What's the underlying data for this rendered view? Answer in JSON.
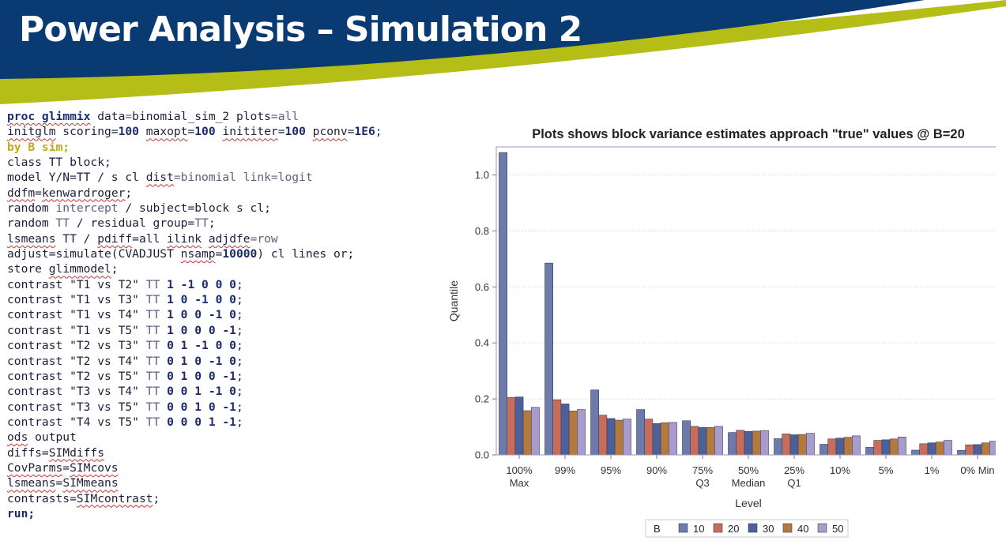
{
  "slide": {
    "title": "Power Analysis – Simulation 2"
  },
  "code_lines": [
    [
      {
        "t": "proc glimmix",
        "c": "k u"
      },
      {
        "t": " data",
        "c": ""
      },
      {
        "t": "=",
        "c": "o"
      },
      {
        "t": "binomial_sim_2 plots",
        "c": ""
      },
      {
        "t": "=",
        "c": "o"
      },
      {
        "t": "all",
        "c": "o"
      }
    ],
    [
      {
        "t": "initglm",
        "c": "u"
      },
      {
        "t": " scoring=",
        "c": ""
      },
      {
        "t": "100",
        "c": "n"
      },
      {
        "t": " ",
        "c": ""
      },
      {
        "t": "maxopt",
        "c": "u"
      },
      {
        "t": "=",
        "c": ""
      },
      {
        "t": "100",
        "c": "n"
      },
      {
        "t": " ",
        "c": ""
      },
      {
        "t": "inititer",
        "c": "u"
      },
      {
        "t": "=",
        "c": ""
      },
      {
        "t": "100",
        "c": "n"
      },
      {
        "t": " ",
        "c": ""
      },
      {
        "t": "pconv",
        "c": "u"
      },
      {
        "t": "=",
        "c": ""
      },
      {
        "t": "1E6",
        "c": "n"
      },
      {
        "t": ";",
        "c": ""
      }
    ],
    [
      {
        "t": "by B sim;",
        "c": "kw"
      }
    ],
    [
      {
        "t": "class TT block;",
        "c": ""
      }
    ],
    [
      {
        "t": "model Y/N=TT / s cl ",
        "c": ""
      },
      {
        "t": "dist",
        "c": "u"
      },
      {
        "t": "=binomial link=logit",
        "c": "o"
      }
    ],
    [
      {
        "t": "ddfm",
        "c": "u"
      },
      {
        "t": "=",
        "c": ""
      },
      {
        "t": "kenwardroger",
        "c": "u"
      },
      {
        "t": ";",
        "c": ""
      }
    ],
    [
      {
        "t": "random ",
        "c": ""
      },
      {
        "t": "intercept",
        "c": "o"
      },
      {
        "t": " / subject=block s cl;",
        "c": ""
      }
    ],
    [
      {
        "t": "random ",
        "c": ""
      },
      {
        "t": "TT",
        "c": "o"
      },
      {
        "t": " / residual group=",
        "c": ""
      },
      {
        "t": "TT",
        "c": "o"
      },
      {
        "t": ";",
        "c": ""
      }
    ],
    [
      {
        "t": "lsmeans",
        "c": "u"
      },
      {
        "t": " TT / ",
        "c": ""
      },
      {
        "t": "pdiff",
        "c": "u"
      },
      {
        "t": "=all ",
        "c": ""
      },
      {
        "t": "ilink",
        "c": "u"
      },
      {
        "t": " ",
        "c": ""
      },
      {
        "t": "adjdfe",
        "c": "u"
      },
      {
        "t": "=row",
        "c": "o"
      }
    ],
    [
      {
        "t": "adjust=simulate(CVADJUST ",
        "c": ""
      },
      {
        "t": "nsamp",
        "c": "u"
      },
      {
        "t": "=",
        "c": ""
      },
      {
        "t": "10000",
        "c": "n"
      },
      {
        "t": ") cl lines or;",
        "c": ""
      }
    ],
    [
      {
        "t": "store ",
        "c": ""
      },
      {
        "t": "glimmodel",
        "c": "u"
      },
      {
        "t": ";",
        "c": ""
      }
    ],
    [
      {
        "t": "contrast \"T1 vs T2\" ",
        "c": ""
      },
      {
        "t": "TT",
        "c": "o"
      },
      {
        "t": " ",
        "c": ""
      },
      {
        "t": "1 -1 0 0 0",
        "c": "n"
      },
      {
        "t": ";",
        "c": ""
      }
    ],
    [
      {
        "t": "contrast \"T1 vs T3\" ",
        "c": ""
      },
      {
        "t": "TT",
        "c": "o"
      },
      {
        "t": " ",
        "c": ""
      },
      {
        "t": "1 0 -1 0 0",
        "c": "n"
      },
      {
        "t": ";",
        "c": ""
      }
    ],
    [
      {
        "t": "contrast \"T1 vs T4\" ",
        "c": ""
      },
      {
        "t": "TT",
        "c": "o"
      },
      {
        "t": " ",
        "c": ""
      },
      {
        "t": "1 0 0 -1 0",
        "c": "n"
      },
      {
        "t": ";",
        "c": ""
      }
    ],
    [
      {
        "t": "contrast \"T1 vs T5\" ",
        "c": ""
      },
      {
        "t": "TT",
        "c": "o"
      },
      {
        "t": " ",
        "c": ""
      },
      {
        "t": "1 0 0 0 -1",
        "c": "n"
      },
      {
        "t": ";",
        "c": ""
      }
    ],
    [
      {
        "t": "contrast \"T2 vs T3\" ",
        "c": ""
      },
      {
        "t": "TT",
        "c": "o"
      },
      {
        "t": " ",
        "c": ""
      },
      {
        "t": "0 1 -1 0 0",
        "c": "n"
      },
      {
        "t": ";",
        "c": ""
      }
    ],
    [
      {
        "t": "contrast \"T2 vs T4\" ",
        "c": ""
      },
      {
        "t": "TT",
        "c": "o"
      },
      {
        "t": " ",
        "c": ""
      },
      {
        "t": "0 1 0 -1 0",
        "c": "n"
      },
      {
        "t": ";",
        "c": ""
      }
    ],
    [
      {
        "t": "contrast \"T2 vs T5\" ",
        "c": ""
      },
      {
        "t": "TT",
        "c": "o"
      },
      {
        "t": " ",
        "c": ""
      },
      {
        "t": "0 1 0 0 -1",
        "c": "n"
      },
      {
        "t": ";",
        "c": ""
      }
    ],
    [
      {
        "t": "contrast \"T3 vs T4\" ",
        "c": ""
      },
      {
        "t": "TT",
        "c": "o"
      },
      {
        "t": " ",
        "c": ""
      },
      {
        "t": "0 0 1 -1 0",
        "c": "n"
      },
      {
        "t": ";",
        "c": ""
      }
    ],
    [
      {
        "t": "contrast \"T3 vs T5\" ",
        "c": ""
      },
      {
        "t": "TT",
        "c": "o"
      },
      {
        "t": " ",
        "c": ""
      },
      {
        "t": "0 0 1 0 -1",
        "c": "n"
      },
      {
        "t": ";",
        "c": ""
      }
    ],
    [
      {
        "t": "contrast \"T4 vs T5\" ",
        "c": ""
      },
      {
        "t": "TT",
        "c": "o"
      },
      {
        "t": " ",
        "c": ""
      },
      {
        "t": "0 0 0 1 -1",
        "c": "n"
      },
      {
        "t": ";",
        "c": ""
      }
    ],
    [
      {
        "t": "ods",
        "c": "u"
      },
      {
        "t": " output",
        "c": ""
      }
    ],
    [
      {
        "t": "diffs=",
        "c": ""
      },
      {
        "t": "SIMdiffs",
        "c": "u"
      }
    ],
    [
      {
        "t": "CovParms",
        "c": "u"
      },
      {
        "t": "=",
        "c": ""
      },
      {
        "t": "SIMcovs",
        "c": "u"
      }
    ],
    [
      {
        "t": "lsmeans",
        "c": "u"
      },
      {
        "t": "=",
        "c": ""
      },
      {
        "t": "SIMmeans",
        "c": "u"
      }
    ],
    [
      {
        "t": "contrasts=",
        "c": ""
      },
      {
        "t": "SIMcontrast",
        "c": "u"
      },
      {
        "t": ";",
        "c": ""
      }
    ],
    [
      {
        "t": "run;",
        "c": "k"
      }
    ]
  ],
  "chart_data": {
    "type": "bar",
    "title": "Plots shows block variance estimates approach \"true\" values @ B=20",
    "xlabel": "Level",
    "ylabel": "Quantile",
    "ylim": [
      0,
      1.1
    ],
    "yticks": [
      "0.0",
      "0.2",
      "0.4",
      "0.6",
      "0.8",
      "1.0"
    ],
    "grid": true,
    "categories": [
      [
        "100%",
        "Max"
      ],
      [
        "99%"
      ],
      [
        "95%"
      ],
      [
        "90%"
      ],
      [
        "75%",
        "Q3"
      ],
      [
        "50%",
        "Median"
      ],
      [
        "25%",
        "Q1"
      ],
      [
        "10%"
      ],
      [
        "5%"
      ],
      [
        "1%"
      ],
      [
        "0% Min"
      ]
    ],
    "legend_title": "B",
    "legend_position": "bottom",
    "series": [
      {
        "name": "10",
        "color": "#6d7bab",
        "values": [
          1.08,
          0.685,
          0.232,
          0.162,
          0.122,
          0.08,
          0.058,
          0.038,
          0.027,
          0.017,
          0.016
        ]
      },
      {
        "name": "20",
        "color": "#c86d5c",
        "values": [
          0.205,
          0.197,
          0.142,
          0.128,
          0.102,
          0.088,
          0.075,
          0.057,
          0.052,
          0.04,
          0.036
        ]
      },
      {
        "name": "30",
        "color": "#4e6098",
        "values": [
          0.207,
          0.182,
          0.13,
          0.112,
          0.098,
          0.084,
          0.072,
          0.06,
          0.054,
          0.043,
          0.037
        ]
      },
      {
        "name": "40",
        "color": "#b47a3d",
        "values": [
          0.158,
          0.157,
          0.124,
          0.115,
          0.098,
          0.085,
          0.073,
          0.063,
          0.057,
          0.046,
          0.043
        ]
      },
      {
        "name": "50",
        "color": "#a99bcb",
        "values": [
          0.17,
          0.162,
          0.128,
          0.116,
          0.102,
          0.087,
          0.077,
          0.068,
          0.064,
          0.052,
          0.049
        ]
      }
    ]
  }
}
